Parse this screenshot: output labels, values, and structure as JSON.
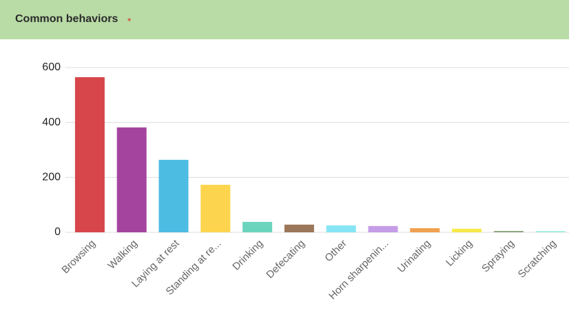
{
  "header": {
    "title": "Common behaviors",
    "required_marker": "*"
  },
  "chart_data": {
    "type": "bar",
    "categories": [
      "Browsing",
      "Walking",
      "Laying at rest",
      "Standing at re...",
      "Drinking",
      "Defecating",
      "Other",
      "Horn sharpenin...",
      "Urinating",
      "Licking",
      "Spraying",
      "Scratching"
    ],
    "values": [
      565,
      382,
      264,
      173,
      38,
      28,
      25,
      23,
      15,
      13,
      5,
      5
    ],
    "colors": [
      "#d6464b",
      "#a5449f",
      "#4dbce2",
      "#fdd44d",
      "#6cd4bd",
      "#9b7658",
      "#86e4f4",
      "#c59de7",
      "#f0a04f",
      "#f7e94a",
      "#8fa583",
      "#a8efe1"
    ],
    "ylim": [
      0,
      600
    ],
    "yticks": [
      0,
      200,
      400,
      600
    ],
    "grid": true
  }
}
